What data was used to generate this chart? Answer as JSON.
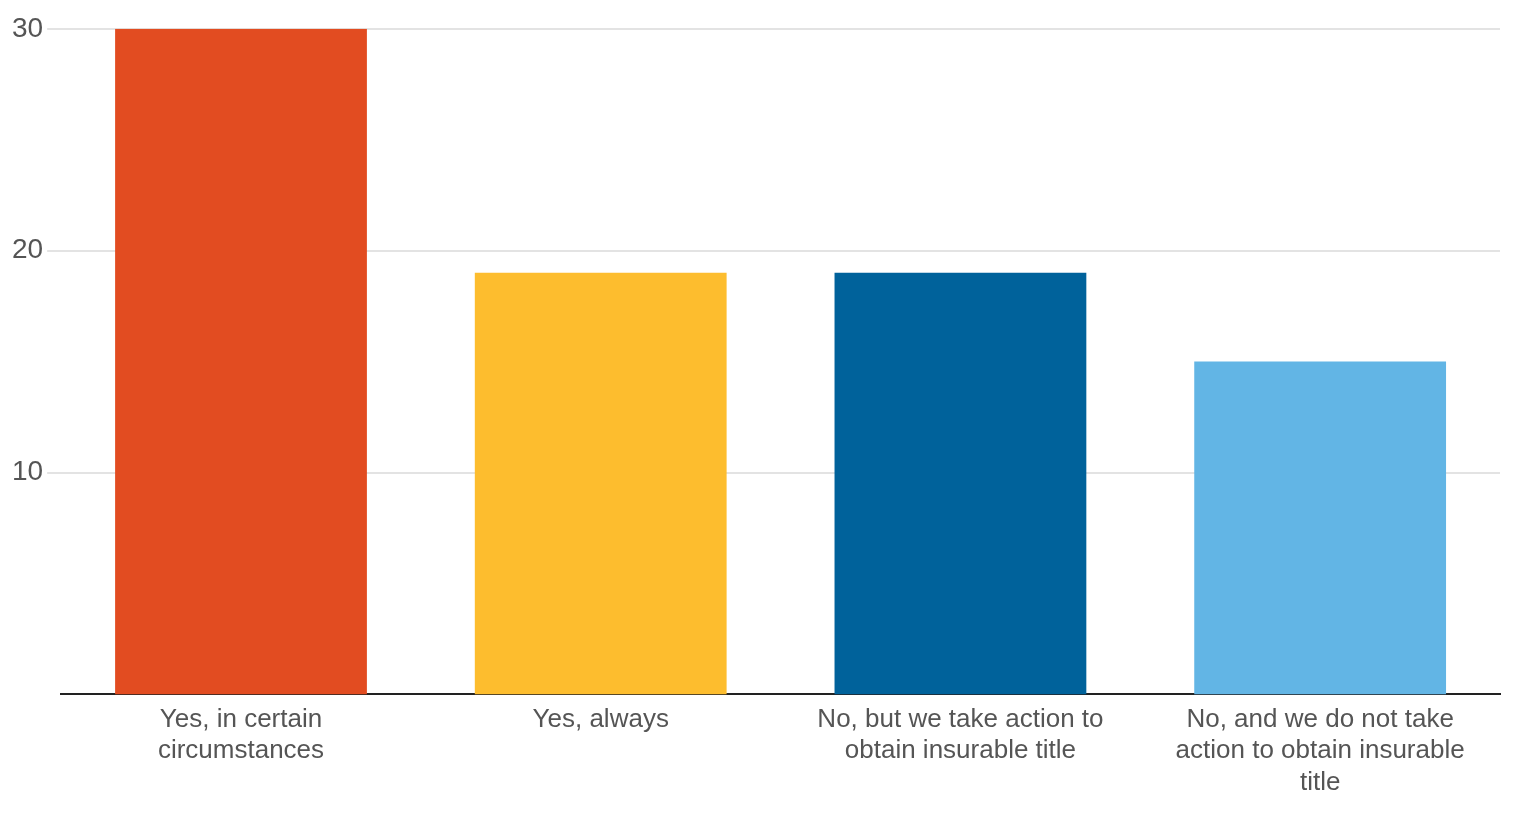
{
  "chart_data": {
    "type": "bar",
    "categories": [
      "Yes, in certain circumstances",
      "Yes, always",
      "No, but we take action to obtain insurable title",
      "No, and we do not take action to obtain insurable title"
    ],
    "values": [
      30,
      19,
      19,
      15
    ],
    "colors": [
      "#e24c21",
      "#fdbd2e",
      "#00629b",
      "#62b5e5"
    ],
    "ylim": [
      0,
      30
    ],
    "yticks": [
      10,
      20,
      30
    ],
    "grid": "y",
    "legend": false
  }
}
